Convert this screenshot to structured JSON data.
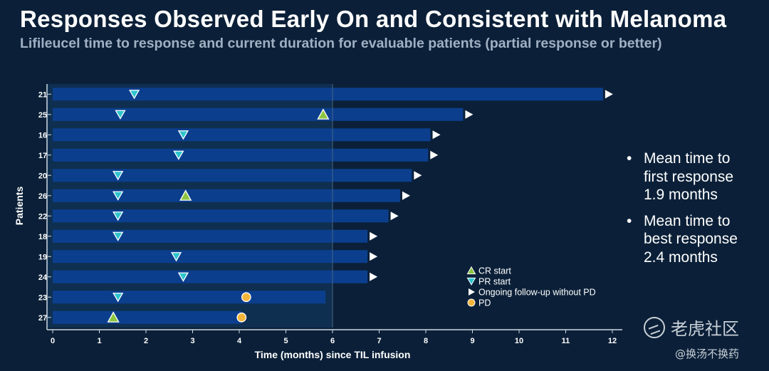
{
  "title": "Responses Observed Early On and Consistent with Melanoma",
  "subtitle": "Lifileucel time to response and current duration for evaluable patients (partial response or better)",
  "bullets": [
    {
      "line1": "Mean time to",
      "line2": "first response",
      "line3": "1.9 months"
    },
    {
      "line1": "Mean time to",
      "line2": "best response",
      "line3": "2.4 months"
    }
  ],
  "watermark": {
    "name": "老虎社区",
    "user": "@换汤不换药"
  },
  "colors": {
    "background": "#0b2038",
    "shaded_region": "#0f2f50",
    "bar": "#0b3f8e",
    "cr_marker": "#8cc63f",
    "pr_marker": "#2ec4cc",
    "pd_marker": "#f4b63a",
    "arrow": "#ffffff"
  },
  "chart_data": {
    "type": "bar",
    "orientation": "horizontal",
    "xlabel": "Time (months) since TIL infusion",
    "ylabel": "Patients",
    "xlim": [
      0,
      12
    ],
    "xticks": [
      0,
      1,
      2,
      3,
      4,
      5,
      6,
      7,
      8,
      9,
      10,
      11,
      12
    ],
    "shaded_region_x": [
      0,
      6
    ],
    "legend": {
      "position": "bottom-right",
      "items": [
        {
          "key": "cr",
          "label": "CR start",
          "marker": "triangle-up"
        },
        {
          "key": "pr",
          "label": "PR start",
          "marker": "triangle-down"
        },
        {
          "key": "ongoing",
          "label": "Ongoing follow-up without PD",
          "marker": "arrow-right"
        },
        {
          "key": "pd",
          "label": "PD",
          "marker": "circle"
        }
      ]
    },
    "patients": [
      {
        "id": "21",
        "duration": 11.8,
        "pr": 1.75,
        "cr": null,
        "pd": null,
        "ongoing": true
      },
      {
        "id": "25",
        "duration": 8.8,
        "pr": 1.45,
        "cr": 5.8,
        "pd": null,
        "ongoing": true
      },
      {
        "id": "16",
        "duration": 8.1,
        "pr": 2.8,
        "cr": null,
        "pd": null,
        "ongoing": true
      },
      {
        "id": "17",
        "duration": 8.05,
        "pr": 2.7,
        "cr": null,
        "pd": null,
        "ongoing": true
      },
      {
        "id": "20",
        "duration": 7.7,
        "pr": 1.4,
        "cr": null,
        "pd": null,
        "ongoing": true
      },
      {
        "id": "26",
        "duration": 7.45,
        "pr": 1.4,
        "cr": 2.85,
        "pd": null,
        "ongoing": true
      },
      {
        "id": "22",
        "duration": 7.2,
        "pr": 1.4,
        "cr": null,
        "pd": null,
        "ongoing": true
      },
      {
        "id": "18",
        "duration": 6.75,
        "pr": 1.4,
        "cr": null,
        "pd": null,
        "ongoing": true
      },
      {
        "id": "19",
        "duration": 6.75,
        "pr": 2.65,
        "cr": null,
        "pd": null,
        "ongoing": true
      },
      {
        "id": "24",
        "duration": 6.75,
        "pr": 2.8,
        "cr": null,
        "pd": null,
        "ongoing": true
      },
      {
        "id": "23",
        "duration": 5.85,
        "pr": 1.4,
        "cr": null,
        "pd": 4.15,
        "ongoing": false
      },
      {
        "id": "27",
        "duration": 4.05,
        "pr": null,
        "cr": 1.3,
        "pd": 4.05,
        "ongoing": false
      }
    ]
  }
}
